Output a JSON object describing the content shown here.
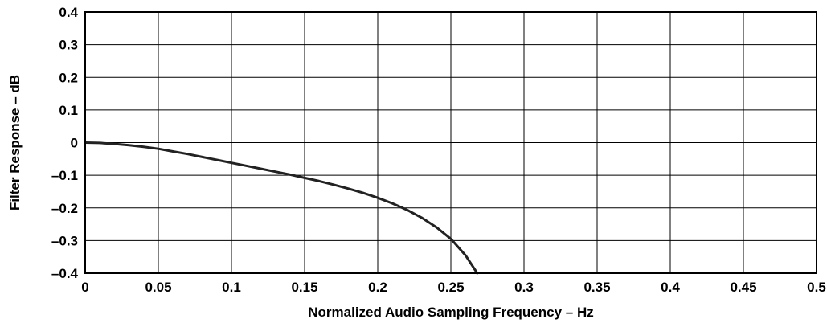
{
  "chart_data": {
    "type": "line",
    "title": "",
    "xlabel": "Normalized Audio Sampling Frequency – Hz",
    "ylabel": "Filter Response – dB",
    "xlim": [
      0,
      0.5
    ],
    "ylim": [
      -0.4,
      0.4
    ],
    "grid": true,
    "x_ticks": [
      0,
      0.05,
      0.1,
      0.15,
      0.2,
      0.25,
      0.3,
      0.35,
      0.4,
      0.45,
      0.5
    ],
    "x_tick_labels": [
      "0",
      "0.05",
      "0.1",
      "0.15",
      "0.2",
      "0.25",
      "0.3",
      "0.35",
      "0.4",
      "0.45",
      "0.5"
    ],
    "y_ticks": [
      0.4,
      0.3,
      0.2,
      0.1,
      0,
      -0.1,
      -0.2,
      -0.3,
      -0.4
    ],
    "y_tick_labels": [
      "0.4",
      "0.3",
      "0.2",
      "0.1",
      "0",
      "–0.1",
      "–0.2",
      "–0.3",
      "–0.4"
    ],
    "series": [
      {
        "color": "#222222",
        "x": [
          0,
          0.01,
          0.02,
          0.03,
          0.04,
          0.05,
          0.06,
          0.07,
          0.08,
          0.09,
          0.1,
          0.11,
          0.12,
          0.13,
          0.14,
          0.15,
          0.16,
          0.17,
          0.18,
          0.19,
          0.2,
          0.21,
          0.22,
          0.23,
          0.24,
          0.25,
          0.26,
          0.268
        ],
        "y": [
          0.0,
          -0.001,
          -0.004,
          -0.008,
          -0.013,
          -0.019,
          -0.027,
          -0.035,
          -0.044,
          -0.053,
          -0.062,
          -0.071,
          -0.08,
          -0.089,
          -0.098,
          -0.108,
          -0.118,
          -0.129,
          -0.141,
          -0.154,
          -0.169,
          -0.186,
          -0.206,
          -0.23,
          -0.259,
          -0.295,
          -0.345,
          -0.4
        ]
      }
    ]
  }
}
